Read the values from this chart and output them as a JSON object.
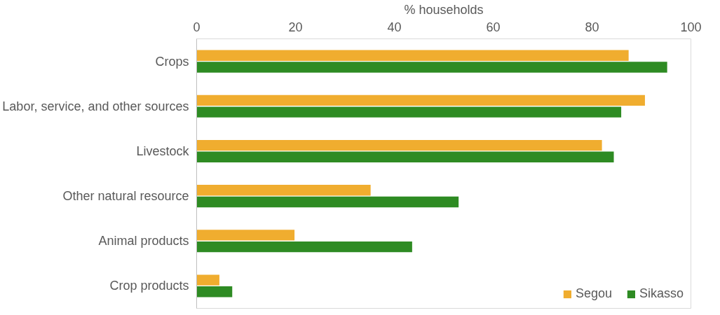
{
  "chart_data": {
    "type": "bar",
    "orientation": "horizontal",
    "xlabel": "% households",
    "categories": [
      "Crops",
      "Labor, service, and other sources",
      "Livestock",
      "Other natural resource",
      "Animal products",
      "Crop products"
    ],
    "series": [
      {
        "name": "Segou",
        "color": "#f0ad2f",
        "values": [
          87.4,
          90.7,
          82.0,
          35.2,
          19.8,
          4.6
        ]
      },
      {
        "name": "Sikasso",
        "color": "#2e8b23",
        "values": [
          95.2,
          85.9,
          84.4,
          53.0,
          43.6,
          7.2
        ]
      }
    ],
    "xlim": [
      0,
      100
    ],
    "xticks": [
      0,
      20,
      40,
      60,
      80,
      100
    ],
    "grid": false,
    "legend": "bottom right"
  }
}
